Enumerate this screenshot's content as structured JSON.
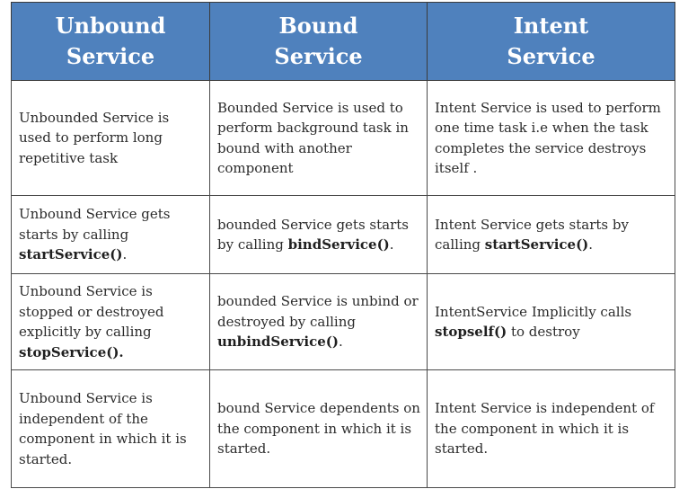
{
  "headers": [
    {
      "line1": "Unbound",
      "line2": "Service"
    },
    {
      "line1": "Bound",
      "line2": "Service"
    },
    {
      "line1": "Intent",
      "line2": "Service"
    }
  ],
  "rows": [
    {
      "unbound": {
        "text": "Unbounded Service is used to perform long repetitive task"
      },
      "bound": {
        "text": "Bounded Service is used to perform background task in bound with another component"
      },
      "intent": {
        "text": "Intent Service is used to perform one time task i.e when the task completes the service destroys itself ."
      }
    },
    {
      "unbound": {
        "pre": "Unbound Service gets starts by calling ",
        "code": "startService()",
        "post": "."
      },
      "bound": {
        "pre": "bounded Service gets starts by calling ",
        "code": "bindService()",
        "post": "."
      },
      "intent": {
        "pre": "Intent Service gets  starts by calling ",
        "code": "startService()",
        "post": "."
      }
    },
    {
      "unbound": {
        "pre": "Unbound Service is stopped or destroyed explicitly  by calling ",
        "code": "stopService().",
        "post": ""
      },
      "bound": {
        "pre": "bounded Service is unbind or destroyed by calling ",
        "code": "unbindService()",
        "post": "."
      },
      "intent": {
        "pre": "IntentService Implicitly calls ",
        "code": "stopself()",
        "post": " to destroy"
      }
    },
    {
      "unbound": {
        "text": "Unbound Service is independent of the component in which it is started."
      },
      "bound": {
        "text": "bound Service dependents on the component in which it is started."
      },
      "intent": {
        "text": "Intent Service is independent of the component in which it is started."
      }
    }
  ]
}
